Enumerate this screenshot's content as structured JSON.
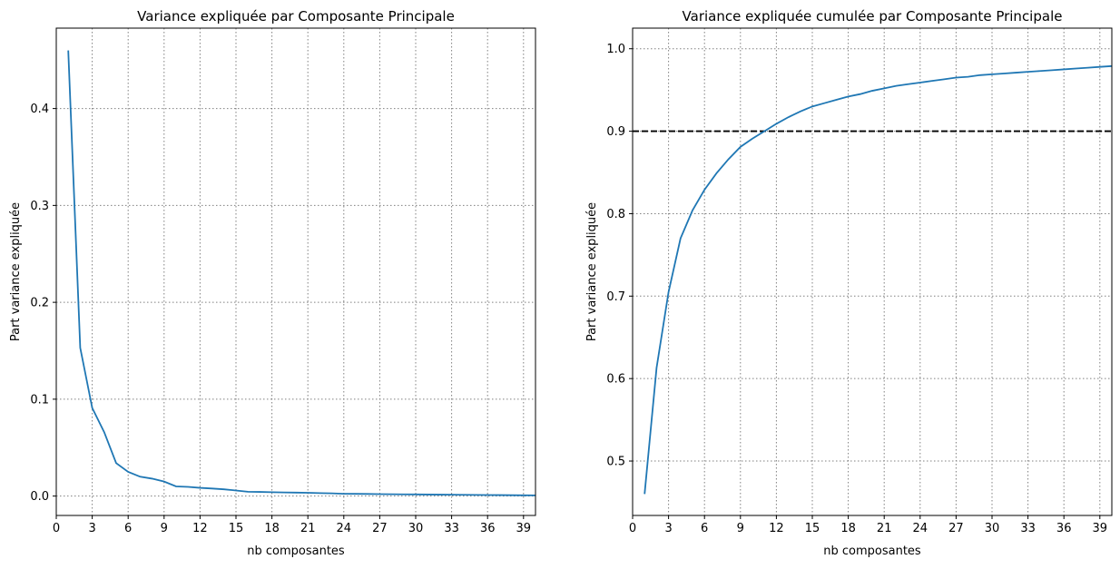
{
  "chart_data": [
    {
      "type": "line",
      "title": "Variance expliquée par Composante Principale",
      "xlabel": "nb composantes",
      "ylabel": "Part variance expliquée",
      "xlim": [
        0,
        40
      ],
      "ylim": [
        -0.02,
        0.483
      ],
      "xticks": [
        0,
        3,
        6,
        9,
        12,
        15,
        18,
        21,
        24,
        27,
        30,
        33,
        36,
        39
      ],
      "yticks": [
        0.0,
        0.1,
        0.2,
        0.3,
        0.4
      ],
      "ytick_labels": [
        "0.0",
        "0.1",
        "0.2",
        "0.3",
        "0.4"
      ],
      "grid": true,
      "series": [
        {
          "color": "#1f77b4",
          "x": [
            1,
            2,
            3,
            4,
            5,
            6,
            7,
            8,
            9,
            10,
            11,
            12,
            13,
            14,
            15,
            16,
            17,
            18,
            19,
            20,
            21,
            22,
            23,
            24,
            25,
            26,
            27,
            28,
            29,
            30,
            31,
            32,
            33,
            34,
            35,
            36,
            37,
            38,
            39,
            40
          ],
          "y": [
            0.46,
            0.153,
            0.091,
            0.066,
            0.034,
            0.025,
            0.02,
            0.018,
            0.015,
            0.01,
            0.0095,
            0.0085,
            0.0078,
            0.007,
            0.0058,
            0.0045,
            0.0043,
            0.004,
            0.0038,
            0.0036,
            0.0034,
            0.0031,
            0.0028,
            0.0024,
            0.0023,
            0.0022,
            0.002,
            0.0019,
            0.0018,
            0.0017,
            0.0016,
            0.0015,
            0.0014,
            0.0013,
            0.0012,
            0.0011,
            0.001,
            0.0009,
            0.0008,
            0.0007
          ]
        }
      ]
    },
    {
      "type": "line",
      "title": "Variance expliquée cumulée par Composante Principale",
      "xlabel": "nb composantes",
      "ylabel": "Part variance expliquée",
      "xlim": [
        0,
        40
      ],
      "ylim": [
        0.434,
        1.025
      ],
      "xticks": [
        0,
        3,
        6,
        9,
        12,
        15,
        18,
        21,
        24,
        27,
        30,
        33,
        36,
        39
      ],
      "yticks": [
        0.5,
        0.6,
        0.7,
        0.8,
        0.9,
        1.0
      ],
      "ytick_labels": [
        "0.5",
        "0.6",
        "0.7",
        "0.8",
        "0.9",
        "1.0"
      ],
      "grid": true,
      "threshold": {
        "y": 0.9,
        "color": "#000000",
        "style": "dashed"
      },
      "series": [
        {
          "color": "#1f77b4",
          "x": [
            1,
            2,
            3,
            4,
            5,
            6,
            7,
            8,
            9,
            10,
            11,
            12,
            13,
            14,
            15,
            16,
            17,
            18,
            19,
            20,
            21,
            22,
            23,
            24,
            25,
            26,
            27,
            28,
            29,
            30,
            31,
            32,
            33,
            34,
            35,
            36,
            37,
            38,
            39,
            40
          ],
          "y": [
            0.46,
            0.613,
            0.705,
            0.77,
            0.804,
            0.829,
            0.849,
            0.866,
            0.881,
            0.891,
            0.9,
            0.909,
            0.917,
            0.924,
            0.93,
            0.934,
            0.938,
            0.942,
            0.945,
            0.949,
            0.952,
            0.955,
            0.957,
            0.959,
            0.961,
            0.963,
            0.965,
            0.966,
            0.968,
            0.969,
            0.97,
            0.971,
            0.972,
            0.973,
            0.974,
            0.975,
            0.976,
            0.977,
            0.978,
            0.979
          ]
        }
      ]
    }
  ]
}
